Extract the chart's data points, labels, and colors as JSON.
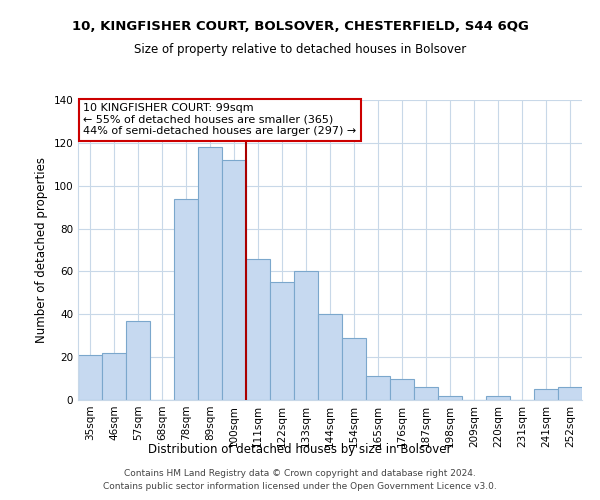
{
  "title": "10, KINGFISHER COURT, BOLSOVER, CHESTERFIELD, S44 6QG",
  "subtitle": "Size of property relative to detached houses in Bolsover",
  "xlabel": "Distribution of detached houses by size in Bolsover",
  "ylabel": "Number of detached properties",
  "bar_labels": [
    "35sqm",
    "46sqm",
    "57sqm",
    "68sqm",
    "78sqm",
    "89sqm",
    "100sqm",
    "111sqm",
    "122sqm",
    "133sqm",
    "144sqm",
    "154sqm",
    "165sqm",
    "176sqm",
    "187sqm",
    "198sqm",
    "209sqm",
    "220sqm",
    "231sqm",
    "241sqm",
    "252sqm"
  ],
  "bar_values": [
    21,
    22,
    37,
    0,
    94,
    118,
    112,
    66,
    55,
    60,
    40,
    29,
    11,
    10,
    6,
    2,
    0,
    2,
    0,
    5,
    6
  ],
  "bar_color": "#c6d9f0",
  "bar_edge_color": "#7ba7cc",
  "vline_index": 6,
  "vline_color": "#aa0000",
  "annotation_text": "10 KINGFISHER COURT: 99sqm\n← 55% of detached houses are smaller (365)\n44% of semi-detached houses are larger (297) →",
  "annotation_box_color": "#ffffff",
  "annotation_box_edge": "#cc0000",
  "ylim": [
    0,
    140
  ],
  "yticks": [
    0,
    20,
    40,
    60,
    80,
    100,
    120,
    140
  ],
  "footer_line1": "Contains HM Land Registry data © Crown copyright and database right 2024.",
  "footer_line2": "Contains public sector information licensed under the Open Government Licence v3.0.",
  "bg_color": "#ffffff",
  "grid_color": "#c8d8e8",
  "title_fontsize": 9.5,
  "subtitle_fontsize": 8.5,
  "axis_label_fontsize": 8.5,
  "tick_fontsize": 7.5,
  "annotation_fontsize": 8.0,
  "footer_fontsize": 6.5
}
